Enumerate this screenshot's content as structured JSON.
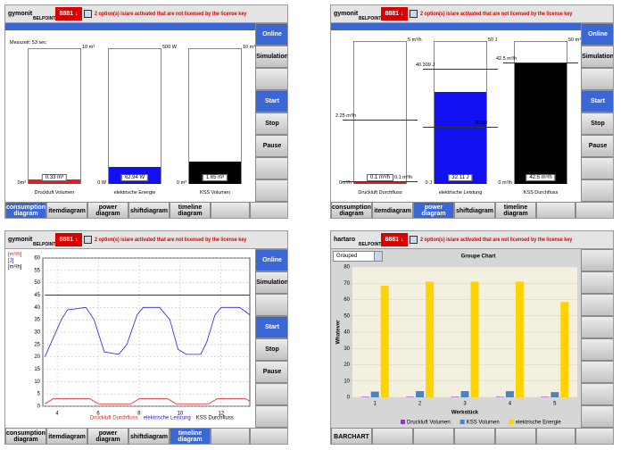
{
  "screens": [
    {
      "logo": "gymonit",
      "brand": "BELPOINT",
      "code": "8881 ↓",
      "message": "2 option(s) is/are activated that are not licensed by the license key",
      "buttons": [
        {
          "label": "Online",
          "highlighted": true
        },
        {
          "label": "Simulation",
          "highlighted": false
        },
        {
          "label": "Start",
          "highlighted": true
        },
        {
          "label": "Stop",
          "highlighted": false
        },
        {
          "label": "Pause",
          "highlighted": false
        }
      ],
      "tabs": [
        "consumption diagram",
        "itemdiagram",
        "power diagram",
        "shiftdiagram",
        "timeline diagram"
      ],
      "active_tab": 0,
      "caption": "Messzeit: 53 sec",
      "gauges": [
        {
          "name": "Druckluft Volumen",
          "max": 10,
          "max_label": "10 m³",
          "min_label": "0m³",
          "value": 0.33,
          "value_label": "0.33 m³",
          "color": "#e02020"
        },
        {
          "name": "elektrische Energie",
          "max": 500,
          "max_label": "500 W",
          "min_label": "0 W",
          "value": 62.94,
          "value_label": "62.94 W",
          "color": "#1010f0"
        },
        {
          "name": "KSS Volumen",
          "max": 10,
          "max_label": "10 m³",
          "min_label": "0 m³",
          "value": 1.65,
          "value_label": "1.65 m³",
          "color": "#000000"
        }
      ]
    },
    {
      "logo": "gymonit",
      "brand": "BELPOINT",
      "code": "8881 ↓",
      "message": "2 option(s) is/are activated that are not licensed by the license key",
      "buttons": [
        {
          "label": "Online",
          "highlighted": true
        },
        {
          "label": "Simulation",
          "highlighted": false
        },
        {
          "label": "Start",
          "highlighted": true
        },
        {
          "label": "Stop",
          "highlighted": false
        },
        {
          "label": "Pause",
          "highlighted": false
        }
      ],
      "tabs": [
        "consumption diagram",
        "itemdiagram",
        "power diagram",
        "shiftdiagram",
        "timeline diagram"
      ],
      "active_tab": 2,
      "gauges": [
        {
          "name": "Druckluft Durchfluss",
          "max": 5,
          "max_label": "5 m³/h",
          "min_label": "0m³/h",
          "value": 0.1,
          "value_label": "0.1 m³/h",
          "color": "#e02020",
          "markers": [
            {
              "value": 2.25,
              "label": "2.25 m³/h"
            },
            {
              "value": 0.1,
              "label": "0.1 m³/h"
            }
          ]
        },
        {
          "name": "elektrische Leistung",
          "max": 50,
          "max_label": "50 J",
          "min_label": "0 J",
          "value": 32.11,
          "value_label": "32.11 J",
          "color": "#1010f0",
          "markers": [
            {
              "value": 40.309,
              "label": "40.309 J"
            },
            {
              "value": 20.09,
              "label": "20.09"
            }
          ]
        },
        {
          "name": "KSS Durchfluss",
          "max": 50,
          "max_label": "50 m³/h",
          "min_label": "0 m³/h",
          "value": 42.5,
          "value_label": "42.5 m³/h",
          "color": "#000000",
          "markers": [
            {
              "value": 42.5,
              "label": "42.5 m³/h"
            }
          ]
        }
      ]
    },
    {
      "logo": "gymonit",
      "brand": "BELPOINT",
      "code": "8881 ↓",
      "message": "2 option(s) is/are activated that are not licensed by the license key",
      "buttons": [
        {
          "label": "Online",
          "highlighted": true
        },
        {
          "label": "Simulation",
          "highlighted": false
        },
        {
          "label": "Start",
          "highlighted": true
        },
        {
          "label": "Stop",
          "highlighted": false
        },
        {
          "label": "Pause",
          "highlighted": false
        }
      ],
      "tabs": [
        "consumption diagram",
        "itemdiagram",
        "power diagram",
        "shiftdiagram",
        "timeline diagram"
      ],
      "active_tab": 4,
      "chart_data": {
        "type": "line",
        "y_units": [
          {
            "text": "[m³/h]",
            "color": "#e02020"
          },
          {
            "text": "[J]",
            "color": "#2020e0"
          },
          {
            "text": "[m³/h]",
            "color": "#000000"
          }
        ],
        "xlim": [
          3.3,
          13.4
        ],
        "xticks": [
          4,
          6,
          8,
          10,
          12
        ],
        "ylim": [
          0,
          60
        ],
        "yticks": [
          0,
          5,
          10,
          15,
          20,
          25,
          30,
          35,
          40,
          45,
          50,
          55,
          60
        ],
        "grid": true,
        "legend": "bottom",
        "series": [
          {
            "name": "Druckluft Durchfluss",
            "color": "#e02020",
            "x": [
              3.4,
              3.8,
              5.6,
              6.0,
              7.6,
              8.0,
              9.4,
              9.8,
              11.4,
              11.8,
              13.2,
              13.4
            ],
            "values": [
              1,
              3,
              3,
              1,
              1,
              3,
              3,
              1,
              1,
              3,
              3,
              2
            ]
          },
          {
            "name": "elektrische Leistung",
            "color": "#2020e0",
            "x": [
              3.4,
              4.2,
              4.5,
              5.4,
              5.8,
              6.3,
              7.0,
              7.4,
              7.9,
              8.2,
              9.0,
              9.5,
              9.9,
              10.3,
              11.0,
              11.3,
              11.7,
              12.0,
              12.9,
              13.4
            ],
            "values": [
              20,
              35,
              39,
              40,
              35,
              22,
              21,
              25,
              37,
              40,
              40,
              35,
              23,
              21,
              21,
              26,
              37,
              40,
              40,
              37
            ]
          },
          {
            "name": "KSS Durchfluss",
            "color": "#000000",
            "x": [
              3.4,
              13.4
            ],
            "values": [
              45,
              45
            ]
          }
        ]
      }
    },
    {
      "logo": "hartaro",
      "brand": "BELPOINT",
      "code": "8881 ↓",
      "message": "2 option(s) is/are activated that are not licensed by the license key",
      "tabs": [
        "BARCHART"
      ],
      "dropdown": "Grouped",
      "chart_data": {
        "type": "bar",
        "title": "Groupe Chart",
        "ylabel": "Whatever",
        "xlabel": "Werkstück",
        "categories": [
          "1",
          "2",
          "3",
          "4",
          "5"
        ],
        "ylim": [
          0,
          80
        ],
        "yticks": [
          0,
          10,
          20,
          30,
          40,
          50,
          60,
          70,
          80
        ],
        "grid": true,
        "legend": "bottom",
        "series": [
          {
            "name": "Druckluft Volumen",
            "color": "#9b30d0",
            "values": [
              0.3,
              0.3,
              0.3,
              0.3,
              0.3
            ]
          },
          {
            "name": "KSS Volumen",
            "color": "#4f81bd",
            "values": [
              3.5,
              3.8,
              3.8,
              3.8,
              3.2
            ]
          },
          {
            "name": "elektrische Energie",
            "color": "#ffd200",
            "values": [
              68.5,
              71,
              71,
              71,
              58.5
            ]
          }
        ]
      }
    }
  ]
}
